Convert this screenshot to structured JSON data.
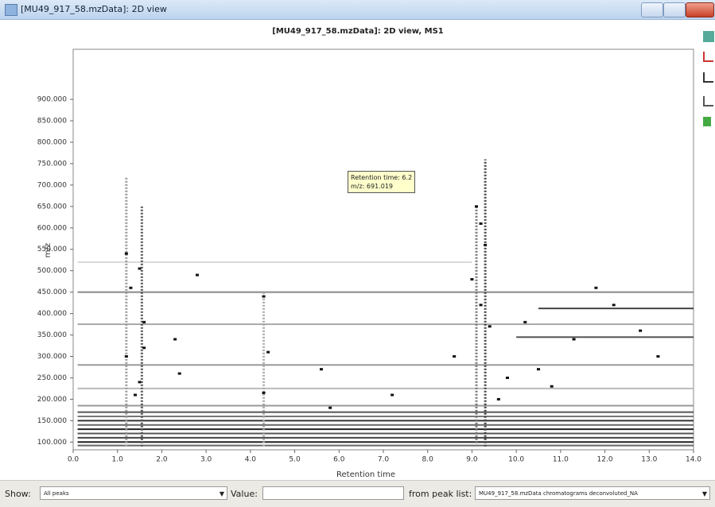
{
  "window_title": "[MU49_917_58.mzData]: 2D view",
  "chart_data": {
    "type": "2d-view",
    "title": "[MU49_917_58.mzData]: 2D view, MS1",
    "xlabel": "Retention time",
    "ylabel": "m/z",
    "xlim": [
      0,
      14
    ],
    "ylim": [
      82,
      1017
    ],
    "xticks": [
      {
        "value": 0,
        "label": "0.0"
      },
      {
        "value": 1,
        "label": "1.0"
      },
      {
        "value": 2,
        "label": "2.0"
      },
      {
        "value": 3,
        "label": "3.0"
      },
      {
        "value": 4,
        "label": "4.0"
      },
      {
        "value": 5,
        "label": "5.0"
      },
      {
        "value": 6,
        "label": "6.0"
      },
      {
        "value": 7,
        "label": "7.0"
      },
      {
        "value": 8,
        "label": "8.0"
      },
      {
        "value": 9,
        "label": "9.0"
      },
      {
        "value": 10,
        "label": "10.0"
      },
      {
        "value": 11,
        "label": "11.0"
      },
      {
        "value": 12,
        "label": "12.0"
      },
      {
        "value": 13,
        "label": "13.0"
      },
      {
        "value": 14,
        "label": "14.0"
      }
    ],
    "yticks": [
      {
        "value": 100,
        "label": "100.000"
      },
      {
        "value": 150,
        "label": "150.000"
      },
      {
        "value": 200,
        "label": "200.000"
      },
      {
        "value": 250,
        "label": "250.000"
      },
      {
        "value": 300,
        "label": "300.000"
      },
      {
        "value": 350,
        "label": "350.000"
      },
      {
        "value": 400,
        "label": "400.000"
      },
      {
        "value": 450,
        "label": "450.000"
      },
      {
        "value": 500,
        "label": "500.000"
      },
      {
        "value": 550,
        "label": "550.000"
      },
      {
        "value": 600,
        "label": "600.000"
      },
      {
        "value": 650,
        "label": "650.000"
      },
      {
        "value": 700,
        "label": "700.000"
      },
      {
        "value": 750,
        "label": "750.000"
      },
      {
        "value": 800,
        "label": "800.000"
      },
      {
        "value": 850,
        "label": "850.000"
      },
      {
        "value": 900,
        "label": "900.000"
      }
    ],
    "bands": [
      {
        "mz": 520,
        "rt_start": 0.1,
        "rt_end": 9.0,
        "color": "#d8d8d8"
      },
      {
        "mz": 450,
        "rt_start": 0.1,
        "rt_end": 14,
        "color": "#888888"
      },
      {
        "mz": 412,
        "rt_start": 10.5,
        "rt_end": 14,
        "color": "#444444"
      },
      {
        "mz": 375,
        "rt_start": 0.1,
        "rt_end": 14,
        "color": "#aaaaaa"
      },
      {
        "mz": 345,
        "rt_start": 10.0,
        "rt_end": 14,
        "color": "#555555"
      },
      {
        "mz": 280,
        "rt_start": 0.1,
        "rt_end": 14,
        "color": "#999999"
      },
      {
        "mz": 225,
        "rt_start": 0.1,
        "rt_end": 14,
        "color": "#bbbbbb"
      },
      {
        "mz": 185,
        "rt_start": 0.1,
        "rt_end": 14,
        "color": "#999999"
      },
      {
        "mz": 170,
        "rt_start": 0.1,
        "rt_end": 14,
        "color": "#555555"
      },
      {
        "mz": 160,
        "rt_start": 0.1,
        "rt_end": 14,
        "color": "#777777"
      },
      {
        "mz": 150,
        "rt_start": 0.1,
        "rt_end": 14,
        "color": "#333333"
      },
      {
        "mz": 140,
        "rt_start": 0.1,
        "rt_end": 14,
        "color": "#666666"
      },
      {
        "mz": 130,
        "rt_start": 0.1,
        "rt_end": 14,
        "color": "#222222"
      },
      {
        "mz": 120,
        "rt_start": 0.1,
        "rt_end": 14,
        "color": "#555555"
      },
      {
        "mz": 110,
        "rt_start": 0.1,
        "rt_end": 14,
        "color": "#444444"
      },
      {
        "mz": 100,
        "rt_start": 0.1,
        "rt_end": 14,
        "color": "#222222"
      },
      {
        "mz": 92,
        "rt_start": 0.1,
        "rt_end": 14,
        "color": "#666666"
      }
    ],
    "streaks": [
      {
        "rt": 1.2,
        "mz_start": 90,
        "mz_end": 720,
        "color": "#999999"
      },
      {
        "rt": 1.55,
        "mz_start": 90,
        "mz_end": 650,
        "color": "#555555"
      },
      {
        "rt": 4.3,
        "mz_start": 90,
        "mz_end": 450,
        "color": "#aaaaaa"
      },
      {
        "rt": 9.1,
        "mz_start": 90,
        "mz_end": 650,
        "color": "#777777"
      },
      {
        "rt": 9.3,
        "mz_start": 90,
        "mz_end": 760,
        "color": "#444444"
      }
    ],
    "peaks": {
      "x": [
        1.2,
        1.3,
        1.5,
        1.6,
        1.2,
        1.5,
        1.4,
        1.6,
        2.3,
        2.8,
        2.4,
        4.3,
        4.4,
        4.3,
        5.6,
        5.8,
        7.2,
        9.1,
        9.2,
        9.3,
        9.0,
        9.2,
        9.4,
        8.6,
        9.8,
        10.2,
        10.8,
        11.3,
        12.2,
        12.8,
        13.2,
        11.8,
        10.5,
        9.6
      ],
      "y": [
        540,
        460,
        505,
        380,
        300,
        240,
        210,
        320,
        340,
        490,
        260,
        440,
        310,
        215,
        270,
        180,
        210,
        650,
        610,
        560,
        480,
        420,
        370,
        300,
        250,
        380,
        230,
        340,
        420,
        360,
        300,
        460,
        270,
        200
      ]
    },
    "tooltip": {
      "line1": "Retention time: 6.2",
      "line2": "m/z: 691.019"
    }
  },
  "controls": {
    "show_label": "Show:",
    "show_value": "All peaks",
    "value_label": "Value:",
    "peaklist_label": "from peak list:",
    "peaklist_value": "MU49_917_58.mzData chromatograms deconvoluted_NA"
  }
}
